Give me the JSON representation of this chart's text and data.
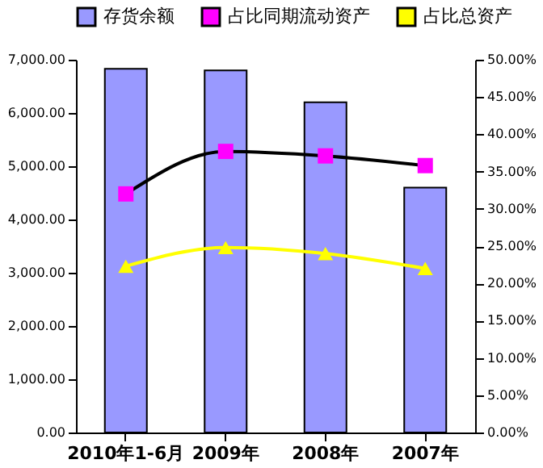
{
  "chart_data": {
    "type": "bar",
    "categories": [
      "2010年1-6月",
      "2009年",
      "2008年",
      "2007年"
    ],
    "series": [
      {
        "name": "存货余额",
        "color": "#9999ff",
        "values": [
          6830,
          6800,
          6200,
          4600
        ]
      },
      {
        "name": "占比同期流动资产",
        "type": "line",
        "axis": "y2",
        "color": "#000000",
        "colors": [
          "#ff00ff",
          "#ff00ff",
          "#ff00ff",
          "#ff00ff"
        ],
        "marker": "square",
        "values": [
          32.0,
          37.7,
          37.1,
          35.8
        ]
      },
      {
        "name": "占比总资产",
        "type": "line",
        "axis": "y2",
        "color": "#ffff00",
        "marker": "triangle",
        "values": [
          22.3,
          24.8,
          24.0,
          22.0
        ]
      }
    ],
    "ylim": [
      0,
      7000
    ],
    "yticks": [
      {
        "value": 0,
        "label": "0.00"
      },
      {
        "value": 1000,
        "label": "1,000.00"
      },
      {
        "value": 2000,
        "label": "2,000.00"
      },
      {
        "value": 3000,
        "label": "3,000.00"
      },
      {
        "value": 4000,
        "label": "4,000.00"
      },
      {
        "value": 5000,
        "label": "5,000.00"
      },
      {
        "value": 6000,
        "label": "6,000.00"
      },
      {
        "value": 7000,
        "label": "7,000.00"
      }
    ],
    "y2lim": [
      0,
      50
    ],
    "y2ticks": [
      {
        "value": 0,
        "label": "0.00%"
      },
      {
        "value": 5,
        "label": "5.00%"
      },
      {
        "value": 10,
        "label": "10.00%"
      },
      {
        "value": 15,
        "label": "15.00%"
      },
      {
        "value": 20,
        "label": "20.00%"
      },
      {
        "value": 25,
        "label": "25.00%"
      },
      {
        "value": 30,
        "label": "30.00%"
      },
      {
        "value": 35,
        "label": "35.00%"
      },
      {
        "value": 40,
        "label": "40.00%"
      },
      {
        "value": 45,
        "label": "45.00%"
      },
      {
        "value": 50,
        "label": "50.00%"
      }
    ],
    "grid": false,
    "legend": "top"
  }
}
